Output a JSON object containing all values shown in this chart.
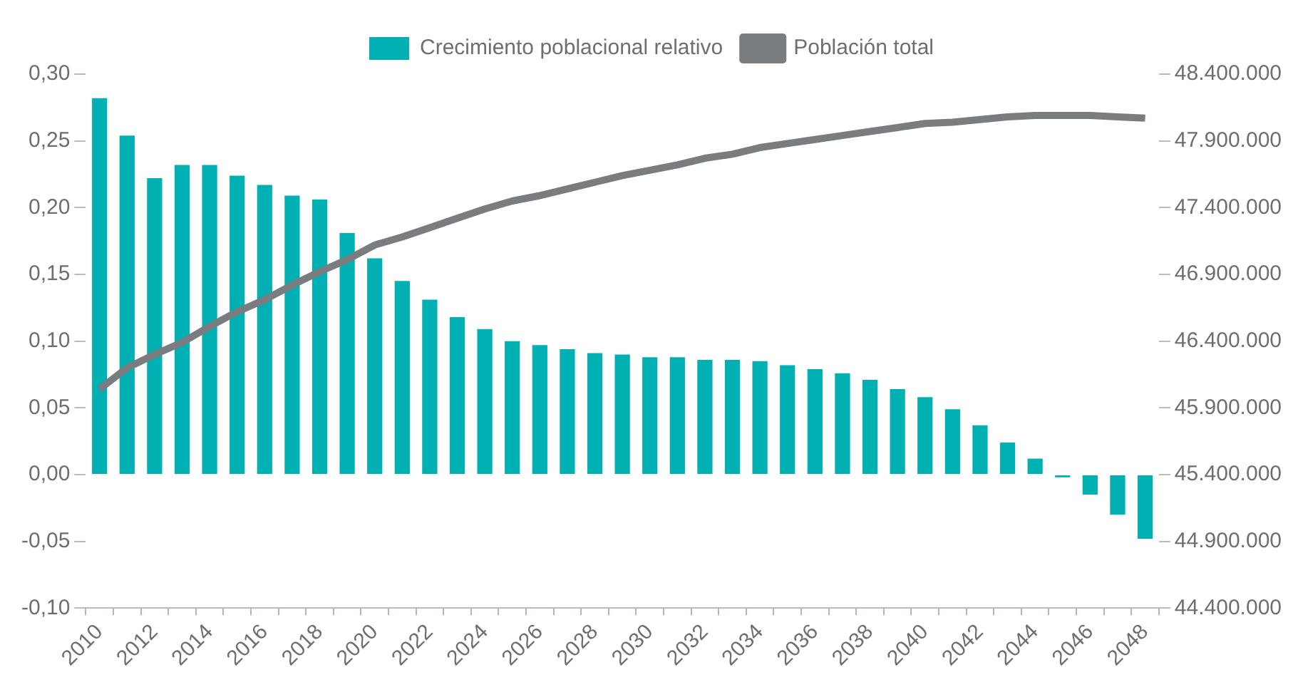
{
  "chart_data": {
    "type": "bar",
    "categories": [
      "2010",
      null,
      "2012",
      null,
      "2014",
      null,
      "2016",
      null,
      "2018",
      null,
      "2020",
      null,
      "2022",
      null,
      "2024",
      null,
      "2026",
      null,
      "2028",
      null,
      "2030",
      null,
      "2032",
      null,
      "2034",
      null,
      "2036",
      null,
      "2038",
      null,
      "2040",
      null,
      "2042",
      null,
      "2044",
      null,
      "2046",
      null,
      "2048"
    ],
    "series": [
      {
        "name": "Crecimiento poblacional relativo",
        "color": "#00b0b3",
        "values": [
          0.282,
          0.254,
          0.222,
          0.232,
          0.232,
          0.224,
          0.217,
          0.209,
          0.206,
          0.181,
          0.162,
          0.145,
          0.131,
          0.118,
          0.109,
          0.1,
          0.097,
          0.094,
          0.091,
          0.09,
          0.088,
          0.088,
          0.086,
          0.086,
          0.085,
          0.082,
          0.079,
          0.076,
          0.071,
          0.064,
          0.058,
          0.049,
          0.037,
          0.024,
          0.012,
          -0.002,
          -0.015,
          -0.03,
          -0.048
        ]
      },
      {
        "name": "Población total",
        "type": "line",
        "axis": "y2",
        "color": "#7a7d80",
        "values": [
          46040000,
          46200000,
          46300000,
          46390000,
          46510000,
          46620000,
          46710000,
          46820000,
          46920000,
          47010000,
          47120000,
          47180000,
          47250000,
          47320000,
          47390000,
          47450000,
          47490000,
          47540000,
          47590000,
          47640000,
          47680000,
          47720000,
          47770000,
          47800000,
          47850000,
          47880000,
          47910000,
          47940000,
          47970000,
          48000000,
          48030000,
          48040000,
          48060000,
          48080000,
          48090000,
          48090000,
          48090000,
          48080000,
          48070000
        ]
      }
    ],
    "ylim": [
      -0.1,
      0.3
    ],
    "yticks": [
      {
        "value": -0.1,
        "label": "-0,10"
      },
      {
        "value": -0.05,
        "label": "-0,05"
      },
      {
        "value": 0,
        "label": "0,00"
      },
      {
        "value": 0.05,
        "label": "0,05"
      },
      {
        "value": 0.1,
        "label": "0,10"
      },
      {
        "value": 0.15,
        "label": "0,15"
      },
      {
        "value": 0.2,
        "label": "0,20"
      },
      {
        "value": 0.25,
        "label": "0,25"
      },
      {
        "value": 0.3,
        "label": "0,30"
      }
    ],
    "y2lim": [
      44400000,
      48400000
    ],
    "y2ticks": [
      {
        "value": 44400000,
        "label": "44.400.000"
      },
      {
        "value": 44900000,
        "label": "44.900.000"
      },
      {
        "value": 45400000,
        "label": "45.400.000"
      },
      {
        "value": 45900000,
        "label": "45.900.000"
      },
      {
        "value": 46400000,
        "label": "46.400.000"
      },
      {
        "value": 46900000,
        "label": "46.900.000"
      },
      {
        "value": 47400000,
        "label": "47.400.000"
      },
      {
        "value": 47900000,
        "label": "47.900.000"
      },
      {
        "value": 48400000,
        "label": "48.400.000"
      }
    ],
    "grid": false,
    "legend": "top",
    "marker": "none"
  }
}
